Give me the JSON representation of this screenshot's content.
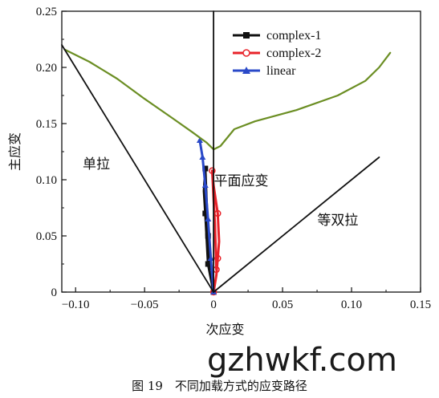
{
  "chart_data": {
    "type": "line",
    "xlabel": "次应变",
    "ylabel": "主应变",
    "xlim": [
      -0.11,
      0.15
    ],
    "ylim": [
      0,
      0.25
    ],
    "x_ticks": [
      "−0.10",
      "−0.05",
      "0",
      "0.05",
      "0.10",
      "0.15"
    ],
    "y_ticks": [
      "0",
      "0.05",
      "0.10",
      "0.15",
      "0.20",
      "0.25"
    ],
    "grid": false,
    "legend_position": "top-center",
    "series": [
      {
        "name": "complex-1",
        "color": "#111111",
        "marker": "square",
        "x": [
          0.0,
          -0.002,
          -0.004,
          -0.005,
          -0.006,
          -0.007,
          -0.006,
          -0.005,
          -0.004,
          -0.003
        ],
        "y": [
          0.0,
          0.012,
          0.025,
          0.048,
          0.07,
          0.09,
          0.11,
          0.08,
          0.05,
          0.02
        ]
      },
      {
        "name": "complex-2",
        "color": "#e8232a",
        "marker": "circle",
        "x": [
          0.0,
          0.002,
          0.003,
          0.004,
          0.003,
          0.0,
          -0.001,
          0.001,
          0.002
        ],
        "y": [
          0.0,
          0.015,
          0.03,
          0.045,
          0.07,
          0.095,
          0.108,
          0.06,
          0.02
        ]
      },
      {
        "name": "linear",
        "color": "#2a49c8",
        "marker": "triangle",
        "x": [
          -0.01,
          -0.008,
          -0.006,
          -0.004,
          -0.002,
          0.0
        ],
        "y": [
          0.135,
          0.12,
          0.095,
          0.065,
          0.03,
          0.0
        ]
      },
      {
        "name": "",
        "role": "forming-limit-curve",
        "color": "#6b8e23",
        "x": [
          -0.108,
          -0.09,
          -0.07,
          -0.05,
          -0.03,
          -0.015,
          -0.005,
          0.0,
          0.005,
          0.015,
          0.03,
          0.06,
          0.09,
          0.11,
          0.12,
          0.128
        ],
        "y": [
          0.216,
          0.205,
          0.19,
          0.172,
          0.155,
          0.142,
          0.133,
          0.127,
          0.13,
          0.145,
          0.152,
          0.162,
          0.175,
          0.188,
          0.2,
          0.213
        ]
      },
      {
        "name": "",
        "role": "reference-line",
        "color": "#111111",
        "x": [
          -0.11,
          0.0
        ],
        "y": [
          0.22,
          0.0
        ]
      },
      {
        "name": "",
        "role": "reference-line",
        "color": "#111111",
        "x": [
          0.0,
          0.12
        ],
        "y": [
          0.0,
          0.12
        ]
      },
      {
        "name": "",
        "role": "reference-line",
        "color": "#111111",
        "x": [
          0.0,
          0.0
        ],
        "y": [
          0.0,
          0.25
        ]
      }
    ],
    "annotations": [
      {
        "text": "单拉",
        "x": -0.085,
        "y": 0.11
      },
      {
        "text": "平面应变",
        "x": 0.02,
        "y": 0.095
      },
      {
        "text": "等双拉",
        "x": 0.09,
        "y": 0.06
      }
    ]
  },
  "watermark": "gzhwkf.com",
  "caption": "图 19　不同加载方式的应变路径"
}
